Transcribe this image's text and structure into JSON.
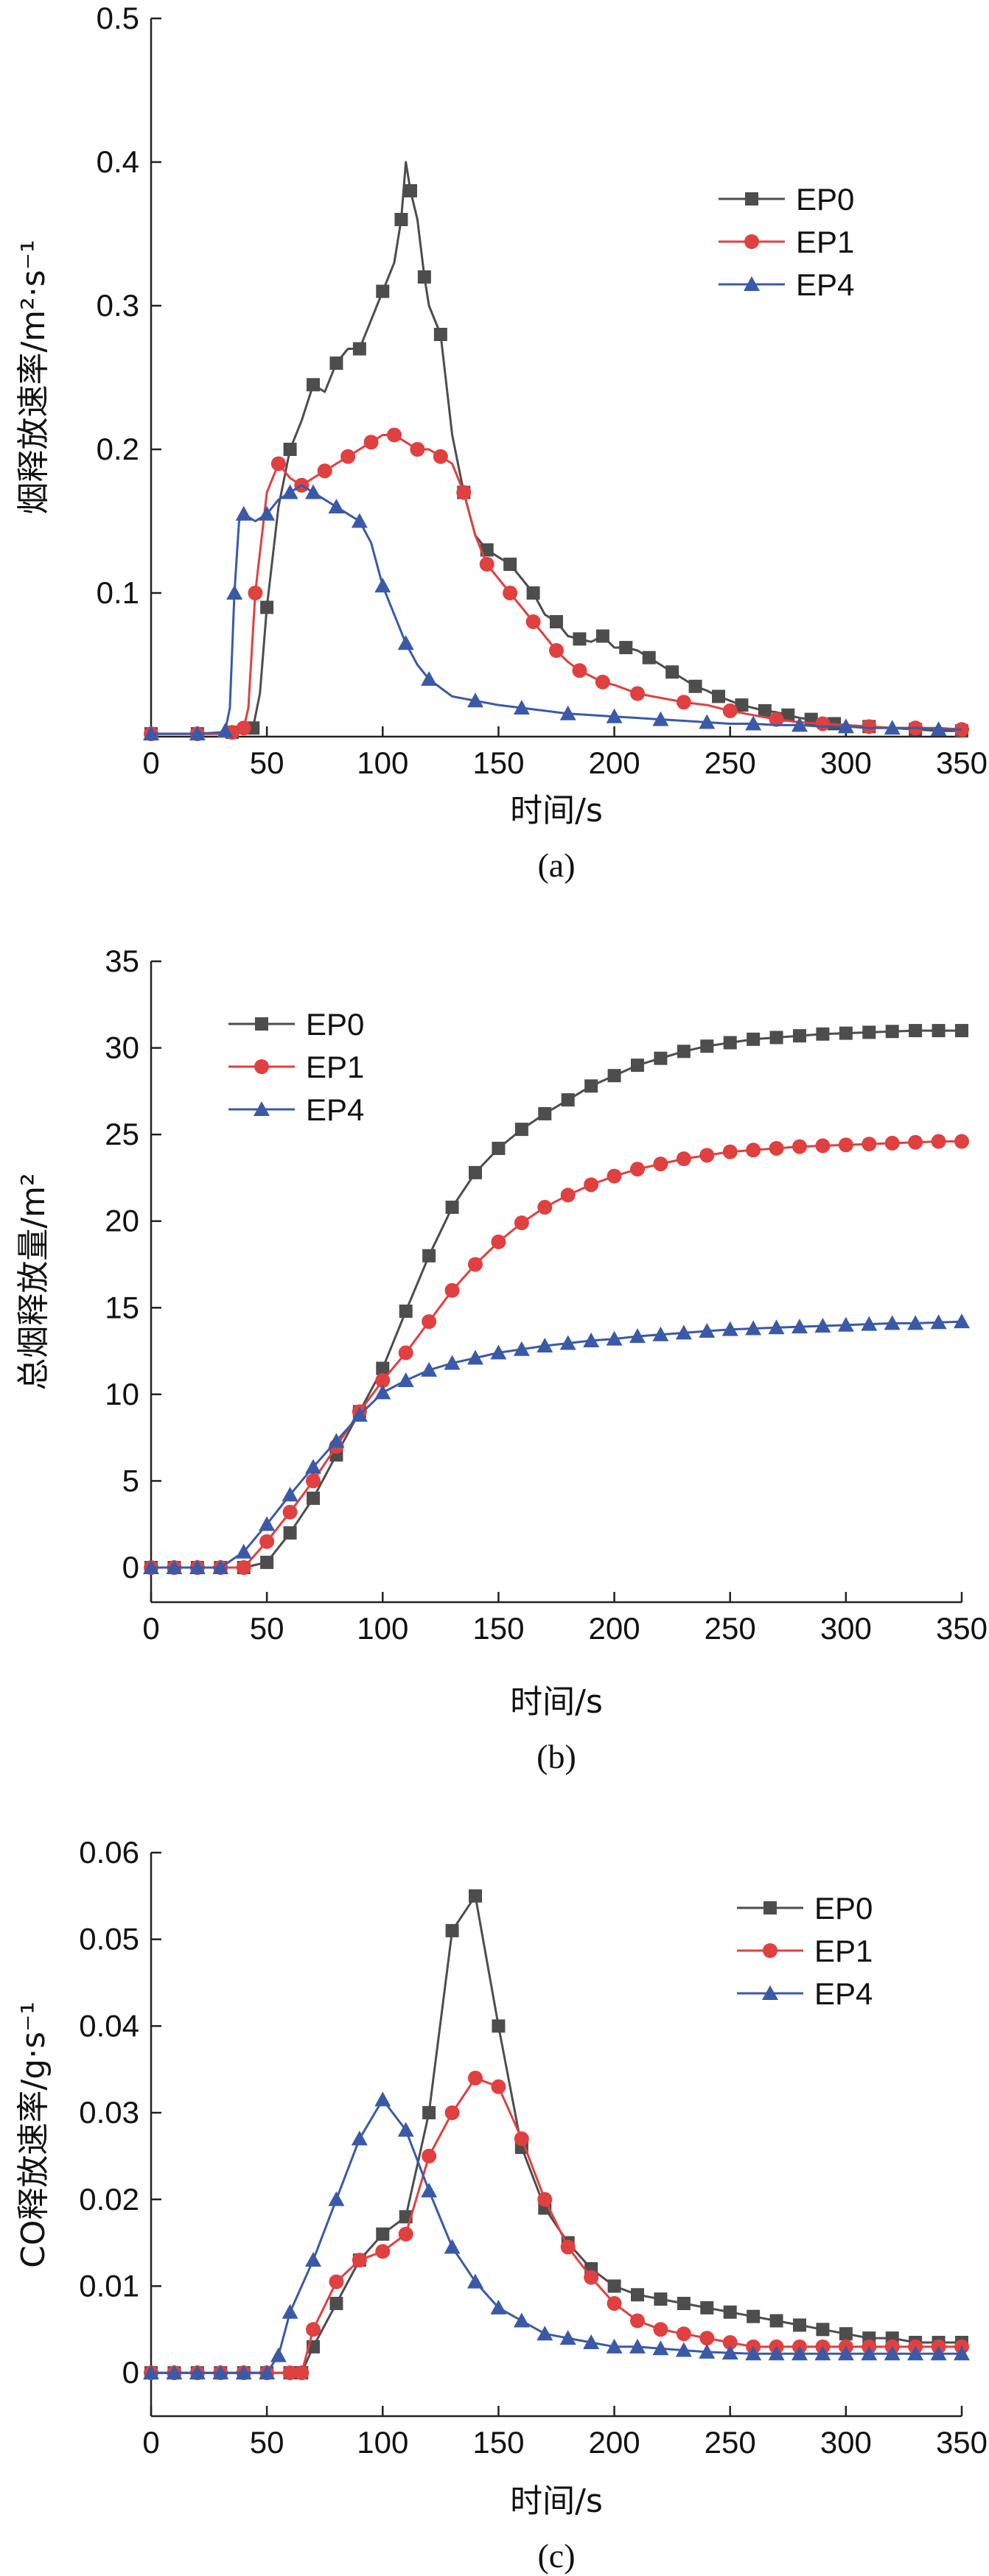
{
  "chart_data": [
    {
      "type": "line",
      "panel_label": "(a)",
      "xlabel": "时间/s",
      "ylabel": "烟释放速率/m²·s⁻¹",
      "xlim": [
        0,
        350
      ],
      "ylim": [
        0,
        0.5
      ],
      "xticks": [
        "0",
        "50",
        "100",
        "150",
        "200",
        "250",
        "300",
        "350"
      ],
      "yticks": [
        "0.1",
        "0.2",
        "0.3",
        "0.4",
        "0.5"
      ],
      "legend_position": "top-right",
      "series": [
        {
          "name": "EP0",
          "color": "#4d4d4d",
          "marker": "square",
          "x": [
            0,
            10,
            20,
            30,
            35,
            40,
            44,
            47,
            50,
            55,
            60,
            65,
            70,
            75,
            80,
            85,
            90,
            95,
            100,
            105,
            108,
            110,
            112,
            115,
            118,
            120,
            125,
            130,
            135,
            140,
            145,
            150,
            155,
            160,
            165,
            170,
            175,
            180,
            185,
            190,
            195,
            200,
            205,
            210,
            215,
            220,
            225,
            230,
            235,
            240,
            245,
            250,
            255,
            260,
            265,
            270,
            275,
            280,
            285,
            290,
            295,
            300,
            310,
            320,
            330,
            340,
            350
          ],
          "y": [
            0.002,
            0.002,
            0.002,
            0.002,
            0.003,
            0.004,
            0.006,
            0.03,
            0.09,
            0.16,
            0.2,
            0.22,
            0.245,
            0.24,
            0.26,
            0.27,
            0.27,
            0.29,
            0.31,
            0.33,
            0.36,
            0.4,
            0.38,
            0.36,
            0.32,
            0.3,
            0.28,
            0.21,
            0.17,
            0.14,
            0.13,
            0.125,
            0.12,
            0.11,
            0.1,
            0.085,
            0.08,
            0.07,
            0.068,
            0.066,
            0.07,
            0.062,
            0.062,
            0.06,
            0.055,
            0.05,
            0.045,
            0.04,
            0.035,
            0.032,
            0.028,
            0.025,
            0.022,
            0.02,
            0.018,
            0.017,
            0.015,
            0.013,
            0.012,
            0.011,
            0.009,
            0.008,
            0.007,
            0.006,
            0.005,
            0.004,
            0.004
          ]
        },
        {
          "name": "EP1",
          "color": "#e04040",
          "marker": "circle",
          "x": [
            0,
            10,
            20,
            30,
            35,
            38,
            40,
            42,
            45,
            50,
            55,
            60,
            65,
            70,
            75,
            80,
            85,
            90,
            95,
            100,
            105,
            110,
            115,
            120,
            125,
            130,
            135,
            140,
            145,
            150,
            155,
            160,
            165,
            170,
            175,
            180,
            185,
            190,
            195,
            200,
            210,
            220,
            230,
            240,
            250,
            260,
            270,
            280,
            290,
            300,
            310,
            320,
            330,
            340,
            350
          ],
          "y": [
            0.002,
            0.002,
            0.002,
            0.002,
            0.003,
            0.004,
            0.006,
            0.02,
            0.1,
            0.17,
            0.19,
            0.18,
            0.175,
            0.18,
            0.185,
            0.19,
            0.195,
            0.2,
            0.205,
            0.21,
            0.21,
            0.205,
            0.2,
            0.2,
            0.195,
            0.19,
            0.17,
            0.14,
            0.12,
            0.11,
            0.1,
            0.09,
            0.08,
            0.07,
            0.06,
            0.052,
            0.046,
            0.042,
            0.038,
            0.036,
            0.03,
            0.027,
            0.024,
            0.022,
            0.018,
            0.015,
            0.012,
            0.01,
            0.009,
            0.008,
            0.007,
            0.006,
            0.006,
            0.006,
            0.005
          ]
        },
        {
          "name": "EP4",
          "color": "#3a5aa8",
          "marker": "triangle",
          "x": [
            0,
            10,
            20,
            30,
            32,
            34,
            36,
            38,
            40,
            45,
            50,
            55,
            60,
            65,
            70,
            75,
            80,
            85,
            90,
            95,
            100,
            105,
            110,
            115,
            120,
            130,
            140,
            150,
            160,
            170,
            180,
            190,
            200,
            210,
            220,
            230,
            240,
            250,
            260,
            270,
            280,
            290,
            300,
            310,
            320,
            330,
            340,
            350
          ],
          "y": [
            0.002,
            0.002,
            0.002,
            0.003,
            0.004,
            0.02,
            0.1,
            0.15,
            0.155,
            0.15,
            0.155,
            0.165,
            0.17,
            0.175,
            0.17,
            0.165,
            0.16,
            0.155,
            0.15,
            0.135,
            0.105,
            0.085,
            0.065,
            0.05,
            0.04,
            0.028,
            0.025,
            0.022,
            0.02,
            0.018,
            0.016,
            0.015,
            0.014,
            0.013,
            0.012,
            0.011,
            0.01,
            0.009,
            0.009,
            0.008,
            0.008,
            0.007,
            0.007,
            0.006,
            0.006,
            0.006,
            0.005,
            0.005
          ]
        }
      ]
    },
    {
      "type": "line",
      "panel_label": "(b)",
      "xlabel": "时间/s",
      "ylabel": "总烟释放量/m²",
      "xlim": [
        0,
        350
      ],
      "ylim": [
        -2,
        35
      ],
      "xticks": [
        "0",
        "50",
        "100",
        "150",
        "200",
        "250",
        "300",
        "350"
      ],
      "yticks": [
        "0",
        "5",
        "10",
        "15",
        "20",
        "25",
        "30",
        "35"
      ],
      "legend_position": "top-left",
      "series": [
        {
          "name": "EP0",
          "color": "#4d4d4d",
          "marker": "square",
          "x": [
            0,
            10,
            20,
            30,
            40,
            50,
            60,
            70,
            80,
            90,
            100,
            110,
            120,
            130,
            140,
            150,
            160,
            170,
            180,
            190,
            200,
            210,
            220,
            230,
            240,
            250,
            260,
            270,
            280,
            290,
            300,
            310,
            320,
            330,
            340,
            350
          ],
          "y": [
            0,
            0,
            0,
            0,
            0,
            0.3,
            2,
            4,
            6.5,
            9,
            11.5,
            14.8,
            18,
            20.8,
            22.8,
            24.2,
            25.3,
            26.2,
            27,
            27.8,
            28.4,
            29,
            29.4,
            29.8,
            30.1,
            30.3,
            30.5,
            30.6,
            30.7,
            30.8,
            30.85,
            30.9,
            30.95,
            31,
            31,
            31
          ]
        },
        {
          "name": "EP1",
          "color": "#e04040",
          "marker": "circle",
          "x": [
            0,
            10,
            20,
            30,
            40,
            50,
            60,
            70,
            80,
            90,
            100,
            110,
            120,
            130,
            140,
            150,
            160,
            170,
            180,
            190,
            200,
            210,
            220,
            230,
            240,
            250,
            260,
            270,
            280,
            290,
            300,
            310,
            320,
            330,
            340,
            350
          ],
          "y": [
            0,
            0,
            0,
            0,
            0,
            1.5,
            3.2,
            5,
            7,
            9,
            10.8,
            12.4,
            14.2,
            16,
            17.5,
            18.8,
            19.9,
            20.8,
            21.5,
            22.1,
            22.6,
            23,
            23.3,
            23.6,
            23.8,
            24,
            24.1,
            24.2,
            24.3,
            24.35,
            24.4,
            24.45,
            24.5,
            24.55,
            24.6,
            24.6
          ]
        },
        {
          "name": "EP4",
          "color": "#3a5aa8",
          "marker": "triangle",
          "x": [
            0,
            10,
            20,
            30,
            40,
            50,
            60,
            70,
            80,
            90,
            100,
            110,
            120,
            130,
            140,
            150,
            160,
            170,
            180,
            190,
            200,
            210,
            220,
            230,
            240,
            250,
            260,
            270,
            280,
            290,
            300,
            310,
            320,
            330,
            340,
            350
          ],
          "y": [
            0,
            0,
            0,
            0,
            0.9,
            2.5,
            4.2,
            5.8,
            7.3,
            8.8,
            10.1,
            10.8,
            11.4,
            11.8,
            12.1,
            12.4,
            12.6,
            12.8,
            12.95,
            13.1,
            13.2,
            13.35,
            13.45,
            13.55,
            13.65,
            13.75,
            13.8,
            13.85,
            13.9,
            13.95,
            14,
            14.05,
            14.1,
            14.1,
            14.15,
            14.2
          ]
        }
      ]
    },
    {
      "type": "line",
      "panel_label": "(c)",
      "xlabel": "时间/s",
      "ylabel": "CO释放速率/g·s⁻¹",
      "xlim": [
        0,
        350
      ],
      "ylim": [
        -0.005,
        0.06
      ],
      "xticks": [
        "0",
        "50",
        "100",
        "150",
        "200",
        "250",
        "300",
        "350"
      ],
      "yticks": [
        "0",
        "0.01",
        "0.02",
        "0.03",
        "0.04",
        "0.05",
        "0.06"
      ],
      "legend_position": "top-right",
      "series": [
        {
          "name": "EP0",
          "color": "#4d4d4d",
          "marker": "square",
          "x": [
            0,
            10,
            20,
            30,
            40,
            50,
            60,
            65,
            70,
            80,
            90,
            100,
            110,
            120,
            130,
            140,
            150,
            160,
            170,
            180,
            190,
            200,
            210,
            220,
            230,
            240,
            250,
            260,
            270,
            280,
            290,
            300,
            310,
            320,
            330,
            340,
            350
          ],
          "y": [
            0,
            0,
            0,
            0,
            0,
            0,
            0,
            0,
            0.003,
            0.008,
            0.013,
            0.016,
            0.018,
            0.03,
            0.051,
            0.055,
            0.04,
            0.026,
            0.019,
            0.015,
            0.012,
            0.01,
            0.009,
            0.0085,
            0.008,
            0.0075,
            0.007,
            0.0065,
            0.006,
            0.0055,
            0.005,
            0.0045,
            0.004,
            0.004,
            0.0035,
            0.0035,
            0.0035
          ]
        },
        {
          "name": "EP1",
          "color": "#e04040",
          "marker": "circle",
          "x": [
            0,
            10,
            20,
            30,
            40,
            50,
            60,
            65,
            70,
            80,
            90,
            100,
            110,
            120,
            130,
            140,
            150,
            160,
            170,
            180,
            190,
            200,
            210,
            220,
            230,
            240,
            250,
            260,
            270,
            280,
            290,
            300,
            310,
            320,
            330,
            340,
            350
          ],
          "y": [
            0,
            0,
            0,
            0,
            0,
            0,
            0,
            0,
            0.005,
            0.0105,
            0.013,
            0.014,
            0.016,
            0.025,
            0.03,
            0.034,
            0.033,
            0.027,
            0.02,
            0.0145,
            0.011,
            0.008,
            0.006,
            0.005,
            0.0045,
            0.004,
            0.0035,
            0.003,
            0.003,
            0.003,
            0.003,
            0.003,
            0.003,
            0.003,
            0.003,
            0.003,
            0.003
          ]
        },
        {
          "name": "EP4",
          "color": "#3a5aa8",
          "marker": "triangle",
          "x": [
            0,
            10,
            20,
            30,
            40,
            50,
            55,
            60,
            70,
            80,
            90,
            100,
            110,
            120,
            130,
            140,
            150,
            160,
            170,
            180,
            190,
            200,
            210,
            220,
            230,
            240,
            250,
            260,
            270,
            280,
            290,
            300,
            310,
            320,
            330,
            340,
            350
          ],
          "y": [
            0,
            0,
            0,
            0,
            0,
            0,
            0.002,
            0.007,
            0.013,
            0.02,
            0.027,
            0.0315,
            0.028,
            0.021,
            0.0145,
            0.0105,
            0.0075,
            0.006,
            0.0045,
            0.004,
            0.0035,
            0.003,
            0.003,
            0.0028,
            0.0026,
            0.0024,
            0.0023,
            0.0022,
            0.0022,
            0.0022,
            0.0022,
            0.0022,
            0.0022,
            0.0022,
            0.0022,
            0.0022,
            0.0022
          ]
        }
      ]
    }
  ]
}
